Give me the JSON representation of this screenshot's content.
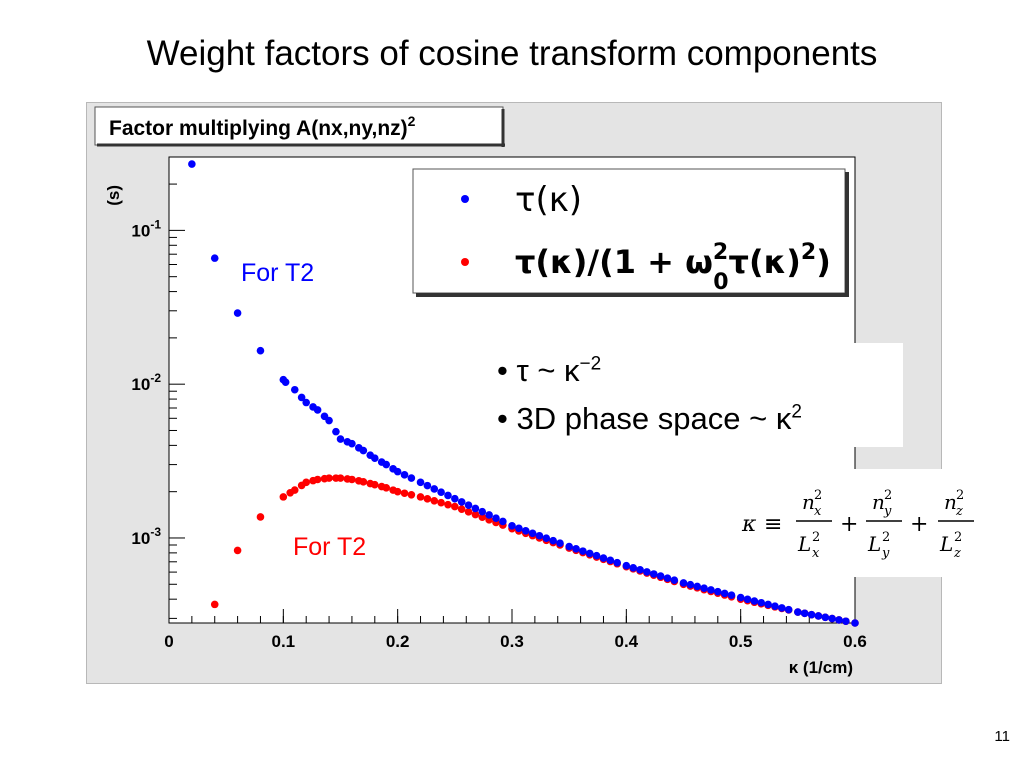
{
  "slide": {
    "title": "Weight factors of cosine transform components",
    "page_number": "11"
  },
  "plot": {
    "title_text": "Factor multiplying A(nx,ny,nz)",
    "title_superscript": "2",
    "ylabel": "(s)",
    "xlabel": "κ (1/cm)",
    "xticks": [
      "0",
      "0.1",
      "0.2",
      "0.3",
      "0.4",
      "0.5",
      "0.6"
    ],
    "yticks": [
      {
        "base": "10",
        "exp": "-1",
        "value": 0.1
      },
      {
        "base": "10",
        "exp": "-2",
        "value": 0.01
      },
      {
        "base": "10",
        "exp": "-3",
        "value": 0.001
      }
    ]
  },
  "legend": {
    "entries": [
      {
        "label": "τ(κ)",
        "color": "#0000ff"
      },
      {
        "label_main": "τ(κ)/(1 + ω",
        "label_sup": "2",
        "label_sub": "0",
        "label_end": "τ(κ)",
        "label_sup2": "2",
        "label_close": ")",
        "color": "#ff0000"
      }
    ]
  },
  "annotations": {
    "for_t2_blue": "For T2",
    "for_t2_red": "For T2",
    "bullet1_prefix": "• τ ~ κ",
    "bullet1_sup": "−2",
    "bullet2_prefix": "• 3D phase space ~ κ",
    "bullet2_sup": "2",
    "kappa_def": "κ ≡ nx²/Lx² + ny²/Ly² + nz²/Lz²"
  },
  "colors": {
    "blue": "#0000ff",
    "red": "#ff0000",
    "canvas": "#e4e4e4"
  },
  "chart_data": {
    "type": "scatter",
    "title": "Factor multiplying A(nx,ny,nz)²",
    "xlabel": "κ (1/cm)",
    "ylabel": "(s)",
    "xlim": [
      0,
      0.6
    ],
    "ylim": [
      0.00028,
      0.3
    ],
    "yscale": "log",
    "grid": false,
    "legend_position": "top-right",
    "series": [
      {
        "name": "τ(κ)",
        "color": "#0000ff",
        "x": [
          0.02,
          0.04,
          0.06,
          0.08,
          0.1,
          0.102,
          0.11,
          0.12,
          0.13,
          0.14,
          0.15,
          0.16,
          0.17,
          0.18,
          0.19,
          0.2,
          0.22,
          0.25,
          0.3,
          0.35,
          0.4,
          0.45,
          0.5,
          0.55,
          0.6
        ],
        "y": [
          0.27,
          0.066,
          0.029,
          0.0165,
          0.0107,
          0.0103,
          0.0092,
          0.0076,
          0.0068,
          0.0058,
          0.0044,
          0.0041,
          0.0037,
          0.0033,
          0.003,
          0.0027,
          0.0023,
          0.0018,
          0.0012,
          0.00088,
          0.00066,
          0.00051,
          0.00041,
          0.00033,
          0.00028
        ]
      },
      {
        "name": "τ(κ)/(1 + ω0²τ(κ)²)",
        "color": "#ff0000",
        "x": [
          0.04,
          0.06,
          0.08,
          0.1,
          0.11,
          0.12,
          0.13,
          0.14,
          0.15,
          0.16,
          0.17,
          0.18,
          0.19,
          0.2,
          0.22,
          0.25,
          0.3,
          0.35,
          0.4,
          0.45,
          0.5,
          0.55,
          0.6
        ],
        "y": [
          0.00037,
          0.00083,
          0.00137,
          0.00185,
          0.00205,
          0.0023,
          0.0024,
          0.00245,
          0.00245,
          0.0024,
          0.00232,
          0.00222,
          0.00212,
          0.002,
          0.00185,
          0.0016,
          0.00115,
          0.00086,
          0.00065,
          0.0005,
          0.0004,
          0.00033,
          0.00028
        ]
      }
    ]
  }
}
